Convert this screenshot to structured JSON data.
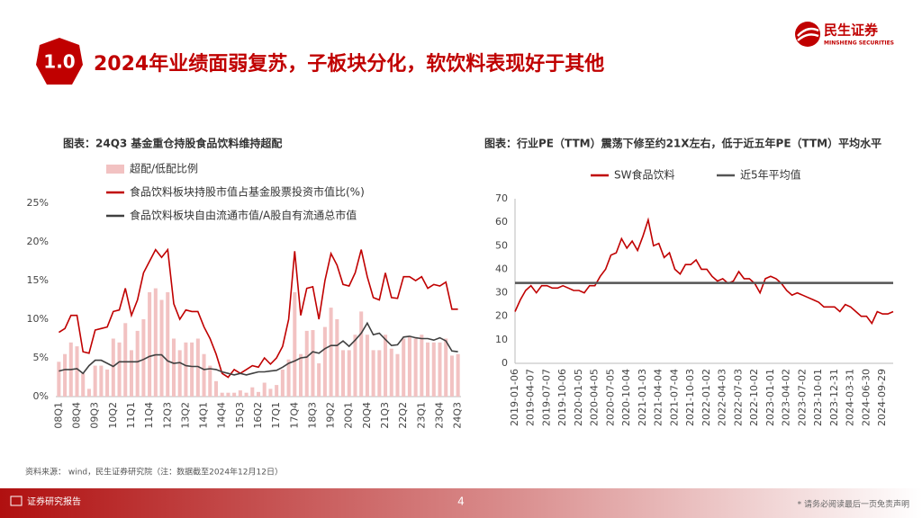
{
  "header": {
    "badge": "1.0",
    "title": "2024年业绩面弱复苏，子板块分化，软饮料表现好于其他",
    "logo_cn": "民生证券",
    "logo_en": "MINSHENG SECURITIES"
  },
  "chart_data": [
    {
      "type": "combo",
      "title": "图表：24Q3 基金重仓持股食品饮料维持超配",
      "legend": "top-left",
      "grid": false,
      "categories": [
        "08Q1",
        null,
        null,
        "08Q4",
        null,
        null,
        "09Q3",
        null,
        null,
        "10Q2",
        null,
        null,
        "11Q1",
        null,
        null,
        "11Q4",
        null,
        null,
        "12Q3",
        null,
        null,
        "13Q2",
        null,
        null,
        "14Q1",
        null,
        null,
        "14Q4",
        null,
        null,
        "15Q3",
        null,
        null,
        "16Q2",
        null,
        null,
        "17Q1",
        null,
        null,
        "17Q4",
        null,
        null,
        "18Q3",
        null,
        null,
        "19Q2",
        null,
        null,
        "20Q1",
        null,
        null,
        "20Q4",
        null,
        null,
        "21Q3",
        null,
        null,
        "22Q2",
        null,
        null,
        "23Q1",
        null,
        null,
        "23Q4",
        null,
        null,
        "24Q3"
      ],
      "ylim": [
        0,
        25
      ],
      "yticks": [
        {
          "value": 0,
          "label": "0%"
        },
        {
          "value": 5,
          "label": "5%"
        },
        {
          "value": 10,
          "label": "10%"
        },
        {
          "value": 15,
          "label": "15%"
        },
        {
          "value": 20,
          "label": "20%"
        },
        {
          "value": 25,
          "label": "25%"
        }
      ],
      "series": [
        {
          "name": "超配/低配比例",
          "type": "bar",
          "color": "#f2c2c2",
          "values": [
            4.5,
            5.5,
            7,
            6.5,
            3,
            1,
            4,
            4,
            3.5,
            7.5,
            7,
            9.5,
            6,
            8.5,
            10,
            13.5,
            14,
            12.5,
            13.5,
            7.5,
            6,
            7,
            7,
            7.5,
            5.5,
            4,
            2,
            0.5,
            0.5,
            0.5,
            0.8,
            0.5,
            1.2,
            0.6,
            1.8,
            1,
            1.5,
            3.5,
            4.8,
            13.5,
            5.5,
            8.5,
            8.6,
            4.3,
            9,
            11.5,
            10,
            6,
            6,
            8,
            11,
            8,
            6,
            6,
            8,
            6.2,
            5.5,
            7.5,
            7.7,
            7.5,
            8,
            7,
            7,
            7,
            7.5,
            5.3,
            5.5
          ]
        },
        {
          "name": "食品饮料板块持股市值占基金股票投资市值比(%)",
          "type": "line",
          "color": "#c00000",
          "values": [
            8.3,
            8.8,
            10.5,
            10.5,
            5.8,
            5.6,
            8.6,
            8.8,
            9,
            11,
            11.2,
            14,
            10.5,
            12.5,
            16,
            17.5,
            19,
            18,
            19,
            12,
            10,
            11.2,
            11,
            11,
            9,
            7.5,
            5.5,
            3,
            2.5,
            3.5,
            3,
            3.5,
            4,
            3.8,
            5,
            4.2,
            5,
            6.5,
            10,
            18.8,
            10.5,
            14,
            14.2,
            10,
            15,
            18.5,
            17,
            14.5,
            14.3,
            16,
            19,
            15.5,
            12.8,
            12.5,
            16,
            12.8,
            12.7,
            15.5,
            15.5,
            15,
            15.5,
            14,
            14.5,
            14.3,
            14.8,
            11.3,
            11.3
          ]
        },
        {
          "name": "食品饮料板块自由流通市值/A股自有流通总市值",
          "type": "line",
          "color": "#404040",
          "values": [
            3.3,
            3.5,
            3.5,
            3.6,
            3,
            4,
            4.7,
            4.7,
            4.3,
            3.9,
            4.5,
            4.5,
            4.5,
            4.5,
            4.8,
            5.2,
            5.4,
            5.4,
            4.6,
            4.3,
            4.4,
            4,
            3.9,
            3.9,
            3.5,
            3.6,
            3.5,
            3.2,
            3,
            2.8,
            3,
            2.8,
            3,
            3.2,
            3.2,
            3.3,
            3.4,
            3.8,
            4.3,
            4.6,
            5,
            5.1,
            5.8,
            5.6,
            6.2,
            6.6,
            6.6,
            7.2,
            6.5,
            7.3,
            8.2,
            9.5,
            8,
            8.2,
            7.4,
            6.6,
            6.7,
            7.7,
            7.8,
            7.6,
            7.5,
            7.5,
            7.3,
            7.6,
            7.2,
            5.9,
            5.8
          ]
        }
      ]
    },
    {
      "type": "line",
      "title": "图表：行业PE（TTM）震荡下修至约21X左右，低于近五年PE（TTM）平均水平",
      "legend": "top",
      "grid": false,
      "categories": [
        "2019-01-06",
        null,
        null,
        "2019-04-07",
        null,
        null,
        "2019-07-07",
        null,
        null,
        "2019-10-06",
        null,
        null,
        "2020-01-05",
        null,
        null,
        "2020-04-05",
        null,
        null,
        "2020-07-05",
        null,
        null,
        "2020-10-04",
        null,
        null,
        "2021-01-03",
        null,
        null,
        "2021-04-04",
        null,
        null,
        "2021-07-04",
        null,
        null,
        "2021-10-03",
        null,
        null,
        "2022-01-02",
        null,
        null,
        "2022-04-03",
        null,
        null,
        "2022-07-03",
        null,
        null,
        "2022-10-02",
        null,
        null,
        "2023-01-01",
        null,
        null,
        "2023-04-02",
        null,
        null,
        "2023-07-02",
        null,
        null,
        "2023-10-01",
        null,
        null,
        "2023-12-31",
        null,
        null,
        "2024-03-31",
        null,
        null,
        "2024-06-30",
        null,
        null,
        "2024-09-29",
        null,
        null
      ],
      "ylim": [
        0,
        70
      ],
      "yticks": [
        0,
        10,
        20,
        30,
        40,
        50,
        60,
        70
      ],
      "series": [
        {
          "name": "SW食品饮料",
          "type": "line",
          "color": "#c00000",
          "values": [
            22,
            27,
            31,
            33,
            30,
            33,
            33,
            32,
            32,
            33,
            32,
            31,
            31,
            30,
            33,
            33,
            37,
            40,
            46,
            47,
            53,
            49,
            52,
            48,
            54,
            61,
            50,
            51,
            45,
            47,
            40,
            38,
            42,
            42,
            44,
            40,
            40,
            37,
            35,
            36,
            34,
            35,
            39,
            36,
            36,
            34,
            30,
            36,
            37,
            36,
            34,
            31,
            29,
            30,
            29,
            28,
            27,
            26,
            24,
            24,
            24,
            22,
            25,
            24,
            22,
            20,
            20,
            17,
            22,
            21,
            21,
            22
          ]
        },
        {
          "name": "近5年平均值",
          "type": "line",
          "color": "#555555",
          "values": [
            34.2,
            34.2,
            34.2,
            34.2,
            34.2,
            34.2,
            34.2,
            34.2,
            34.2,
            34.2,
            34.2,
            34.2,
            34.2,
            34.2,
            34.2,
            34.2,
            34.2,
            34.2,
            34.2,
            34.2,
            34.2,
            34.2,
            34.2,
            34.2,
            34.2,
            34.2,
            34.2,
            34.2,
            34.2,
            34.2,
            34.2,
            34.2,
            34.2,
            34.2,
            34.2,
            34.2,
            34.2,
            34.2,
            34.2,
            34.2,
            34.2,
            34.2,
            34.2,
            34.2,
            34.2,
            34.2,
            34.2,
            34.2,
            34.2,
            34.2,
            34.2,
            34.2,
            34.2,
            34.2,
            34.2,
            34.2,
            34.2,
            34.2,
            34.2,
            34.2,
            34.2,
            34.2,
            34.2,
            34.2,
            34.2,
            34.2,
            34.2,
            34.2,
            34.2,
            34.2,
            34.2,
            34.2
          ]
        }
      ]
    }
  ],
  "source": "资料来源： wind，民生证券研究院（注：数据截至2024年12月12日）",
  "footer": {
    "left": "证券研究报告",
    "page": "4",
    "disclaimer": "* 请务必阅读最后一页免责声明"
  }
}
